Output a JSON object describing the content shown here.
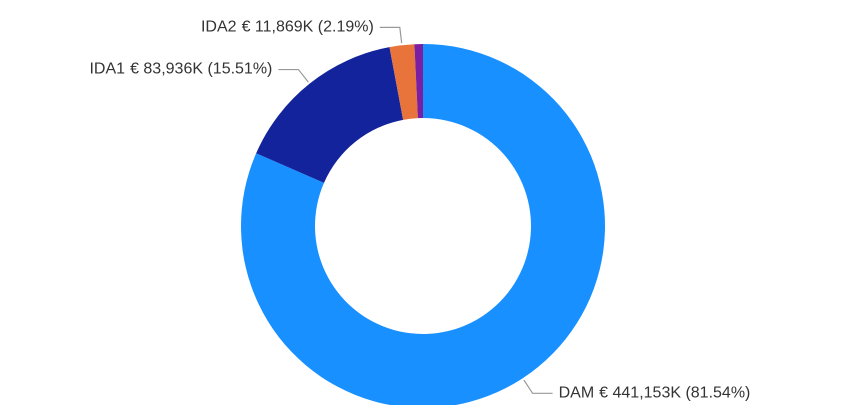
{
  "chart_data": {
    "type": "donut",
    "categories": [
      "DAM",
      "IDA1",
      "IDA2",
      null
    ],
    "values": [
      441153,
      83936,
      11869,
      4075
    ],
    "value_labels": [
      "€ 441,153K (81.54%)",
      "€ 83,936K (15.51%)",
      "€ 11,869K (2.19%)",
      null
    ],
    "colors": [
      "#1890ff",
      "#13239c",
      "#e8743b",
      "#7b1fa2"
    ]
  }
}
